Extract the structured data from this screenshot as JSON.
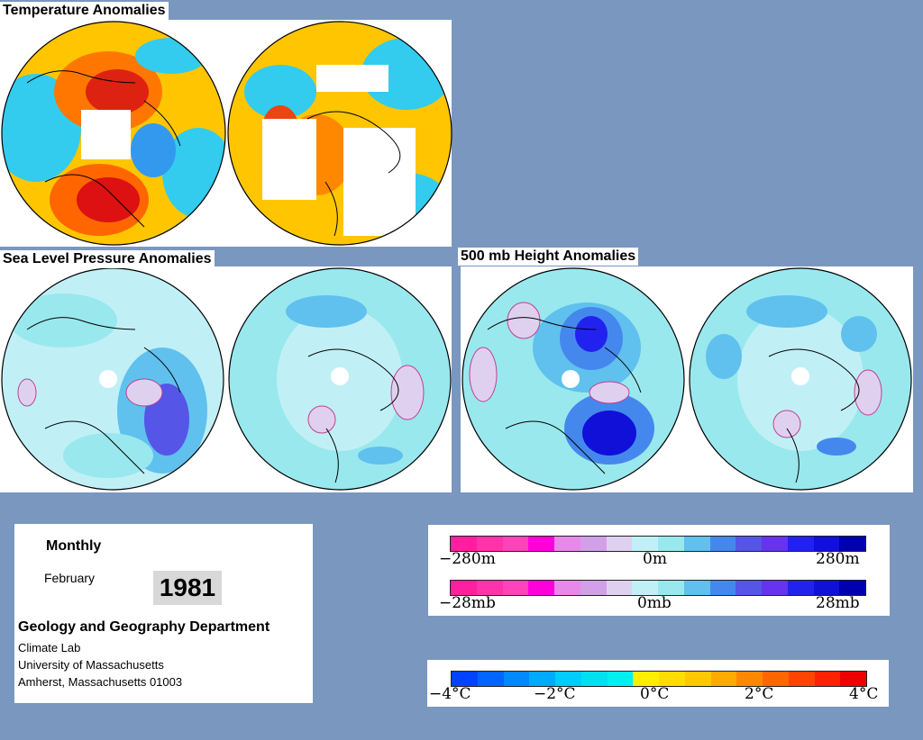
{
  "titles": {
    "temperature": "Temperature Anomalies",
    "slp": "Sea Level Pressure Anomalies",
    "height500": "500 mb Height Anomalies"
  },
  "info": {
    "period": "Monthly",
    "month": "February",
    "year": "1981",
    "department": "Geology and Geography Department",
    "lab": "Climate Lab",
    "university": "University of Massachusetts",
    "address": "Amherst, Massachusetts 01003"
  },
  "legend_height": {
    "min_label": "−280m",
    "mid_label": "0m",
    "max_label": "280m",
    "colors": [
      "#ff1f9f",
      "#ff33aa",
      "#ff44bb",
      "#ff00dd",
      "#e888e8",
      "#d2a0e8",
      "#e0d0f0",
      "#c0f0f5",
      "#99e8ee",
      "#60c0ee",
      "#4488ee",
      "#5555e8",
      "#6633ee",
      "#2222ee",
      "#1010d8",
      "#0000b0"
    ]
  },
  "legend_pressure": {
    "min_label": "−28mb",
    "mid_label": "0mb",
    "max_label": "28mb",
    "colors": [
      "#ff1f9f",
      "#ff33aa",
      "#ff44bb",
      "#ff00dd",
      "#e888e8",
      "#d2a0e8",
      "#e0d0f0",
      "#c0f0f5",
      "#99e8ee",
      "#60c0ee",
      "#4488ee",
      "#5555e8",
      "#6633ee",
      "#2222ee",
      "#1010d8",
      "#0000b0"
    ]
  },
  "legend_temperature": {
    "labels": [
      "−4°C",
      "−2°C",
      "0°C",
      "2°C",
      "4°C"
    ],
    "colors": [
      "#0044ff",
      "#0066ff",
      "#0088ff",
      "#00aaff",
      "#00ccff",
      "#00e0ee",
      "#00f0f0",
      "#ffee00",
      "#ffdd00",
      "#ffc800",
      "#ffaa00",
      "#ff8800",
      "#ff6600",
      "#ff4400",
      "#ff2200",
      "#ee0000"
    ]
  }
}
